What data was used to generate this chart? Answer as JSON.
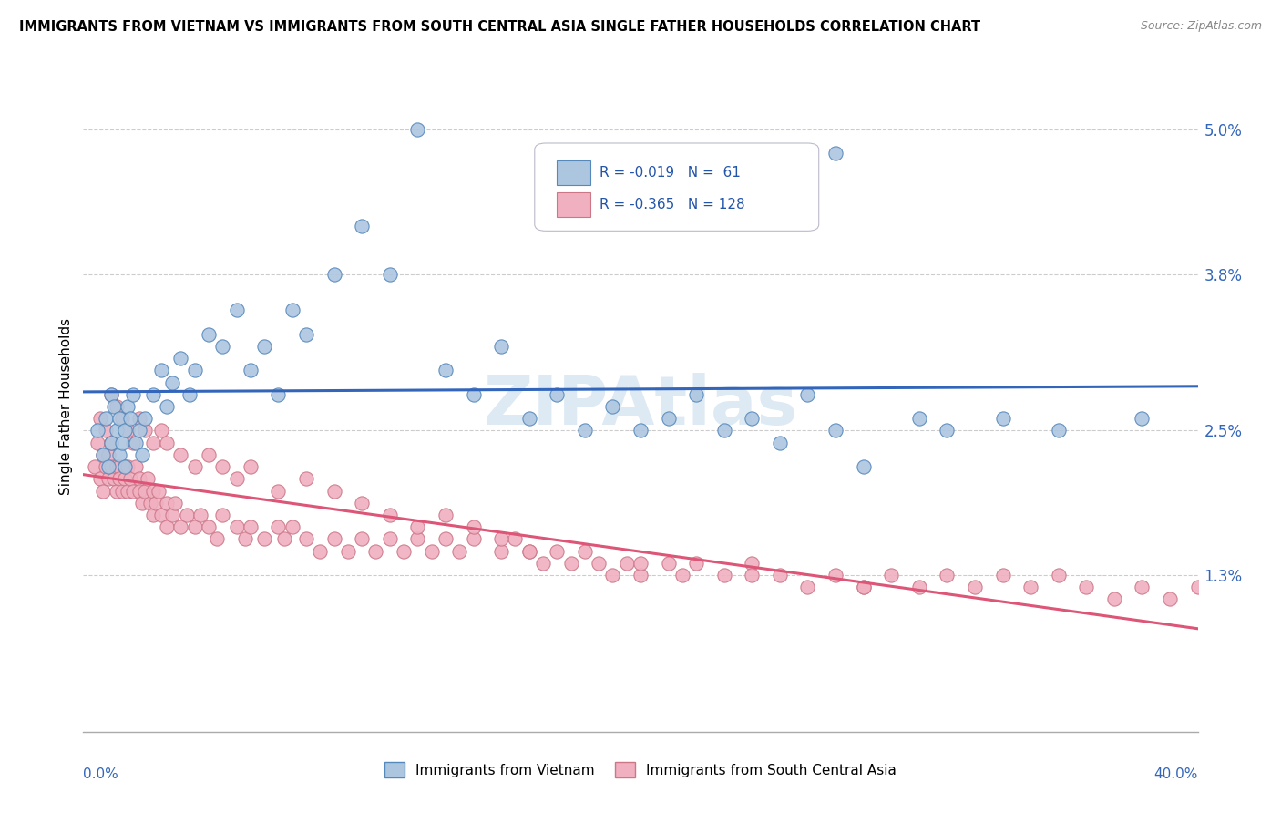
{
  "title": "IMMIGRANTS FROM VIETNAM VS IMMIGRANTS FROM SOUTH CENTRAL ASIA SINGLE FATHER HOUSEHOLDS CORRELATION CHART",
  "source": "Source: ZipAtlas.com",
  "ylabel": "Single Father Households",
  "ytick_vals": [
    0.013,
    0.025,
    0.038,
    0.05
  ],
  "ytick_labels": [
    "1.3%",
    "2.5%",
    "3.8%",
    "5.0%"
  ],
  "xlim": [
    0.0,
    0.4
  ],
  "ylim": [
    0.0,
    0.054
  ],
  "vietnam_color": "#adc6e0",
  "vietnam_edge": "#5588bb",
  "vietnam_line_color": "#3366bb",
  "sca_color": "#f0b0c0",
  "sca_edge": "#cc7788",
  "sca_line_color": "#dd5577",
  "R_vietnam": -0.019,
  "N_vietnam": 61,
  "R_sca": -0.365,
  "N_sca": 128,
  "legend_label_vietnam": "Immigrants from Vietnam",
  "legend_label_sca": "Immigrants from South Central Asia",
  "watermark": "ZIPAtlas",
  "background_color": "#ffffff",
  "grid_color": "#cccccc",
  "vietnam_x": [
    0.005,
    0.007,
    0.008,
    0.009,
    0.01,
    0.01,
    0.011,
    0.012,
    0.013,
    0.013,
    0.014,
    0.015,
    0.015,
    0.016,
    0.017,
    0.018,
    0.019,
    0.02,
    0.021,
    0.022,
    0.025,
    0.028,
    0.03,
    0.032,
    0.035,
    0.038,
    0.04,
    0.045,
    0.05,
    0.055,
    0.06,
    0.065,
    0.07,
    0.075,
    0.08,
    0.09,
    0.1,
    0.11,
    0.12,
    0.13,
    0.14,
    0.15,
    0.16,
    0.17,
    0.18,
    0.19,
    0.2,
    0.21,
    0.22,
    0.23,
    0.24,
    0.25,
    0.26,
    0.27,
    0.28,
    0.3,
    0.31,
    0.33,
    0.35,
    0.38,
    0.27
  ],
  "vietnam_y": [
    0.025,
    0.023,
    0.026,
    0.022,
    0.024,
    0.028,
    0.027,
    0.025,
    0.023,
    0.026,
    0.024,
    0.025,
    0.022,
    0.027,
    0.026,
    0.028,
    0.024,
    0.025,
    0.023,
    0.026,
    0.028,
    0.03,
    0.027,
    0.029,
    0.031,
    0.028,
    0.03,
    0.033,
    0.032,
    0.035,
    0.03,
    0.032,
    0.028,
    0.035,
    0.033,
    0.038,
    0.042,
    0.038,
    0.05,
    0.03,
    0.028,
    0.032,
    0.026,
    0.028,
    0.025,
    0.027,
    0.025,
    0.026,
    0.028,
    0.025,
    0.026,
    0.024,
    0.028,
    0.025,
    0.022,
    0.026,
    0.025,
    0.026,
    0.025,
    0.026,
    0.048
  ],
  "sca_x": [
    0.004,
    0.005,
    0.006,
    0.007,
    0.007,
    0.008,
    0.009,
    0.009,
    0.01,
    0.01,
    0.011,
    0.012,
    0.012,
    0.013,
    0.013,
    0.014,
    0.015,
    0.015,
    0.016,
    0.016,
    0.017,
    0.018,
    0.019,
    0.02,
    0.02,
    0.021,
    0.022,
    0.023,
    0.024,
    0.025,
    0.025,
    0.026,
    0.027,
    0.028,
    0.03,
    0.03,
    0.032,
    0.033,
    0.035,
    0.037,
    0.04,
    0.042,
    0.045,
    0.048,
    0.05,
    0.055,
    0.058,
    0.06,
    0.065,
    0.07,
    0.072,
    0.075,
    0.08,
    0.085,
    0.09,
    0.095,
    0.1,
    0.105,
    0.11,
    0.115,
    0.12,
    0.125,
    0.13,
    0.135,
    0.14,
    0.15,
    0.155,
    0.16,
    0.165,
    0.17,
    0.175,
    0.18,
    0.185,
    0.19,
    0.195,
    0.2,
    0.21,
    0.215,
    0.22,
    0.23,
    0.24,
    0.25,
    0.26,
    0.27,
    0.28,
    0.29,
    0.3,
    0.31,
    0.32,
    0.33,
    0.34,
    0.35,
    0.36,
    0.37,
    0.38,
    0.39,
    0.4,
    0.006,
    0.008,
    0.01,
    0.012,
    0.014,
    0.016,
    0.018,
    0.02,
    0.022,
    0.025,
    0.028,
    0.03,
    0.035,
    0.04,
    0.045,
    0.05,
    0.055,
    0.06,
    0.07,
    0.08,
    0.09,
    0.1,
    0.11,
    0.12,
    0.13,
    0.14,
    0.15,
    0.16,
    0.2,
    0.24,
    0.28
  ],
  "sca_y": [
    0.022,
    0.024,
    0.021,
    0.023,
    0.02,
    0.022,
    0.021,
    0.023,
    0.022,
    0.024,
    0.021,
    0.022,
    0.02,
    0.022,
    0.021,
    0.02,
    0.022,
    0.021,
    0.02,
    0.022,
    0.021,
    0.02,
    0.022,
    0.021,
    0.02,
    0.019,
    0.02,
    0.021,
    0.019,
    0.02,
    0.018,
    0.019,
    0.02,
    0.018,
    0.019,
    0.017,
    0.018,
    0.019,
    0.017,
    0.018,
    0.017,
    0.018,
    0.017,
    0.016,
    0.018,
    0.017,
    0.016,
    0.017,
    0.016,
    0.017,
    0.016,
    0.017,
    0.016,
    0.015,
    0.016,
    0.015,
    0.016,
    0.015,
    0.016,
    0.015,
    0.016,
    0.015,
    0.016,
    0.015,
    0.016,
    0.015,
    0.016,
    0.015,
    0.014,
    0.015,
    0.014,
    0.015,
    0.014,
    0.013,
    0.014,
    0.013,
    0.014,
    0.013,
    0.014,
    0.013,
    0.014,
    0.013,
    0.012,
    0.013,
    0.012,
    0.013,
    0.012,
    0.013,
    0.012,
    0.013,
    0.012,
    0.013,
    0.012,
    0.011,
    0.012,
    0.011,
    0.012,
    0.026,
    0.025,
    0.028,
    0.027,
    0.026,
    0.025,
    0.024,
    0.026,
    0.025,
    0.024,
    0.025,
    0.024,
    0.023,
    0.022,
    0.023,
    0.022,
    0.021,
    0.022,
    0.02,
    0.021,
    0.02,
    0.019,
    0.018,
    0.017,
    0.018,
    0.017,
    0.016,
    0.015,
    0.014,
    0.013,
    0.012
  ]
}
